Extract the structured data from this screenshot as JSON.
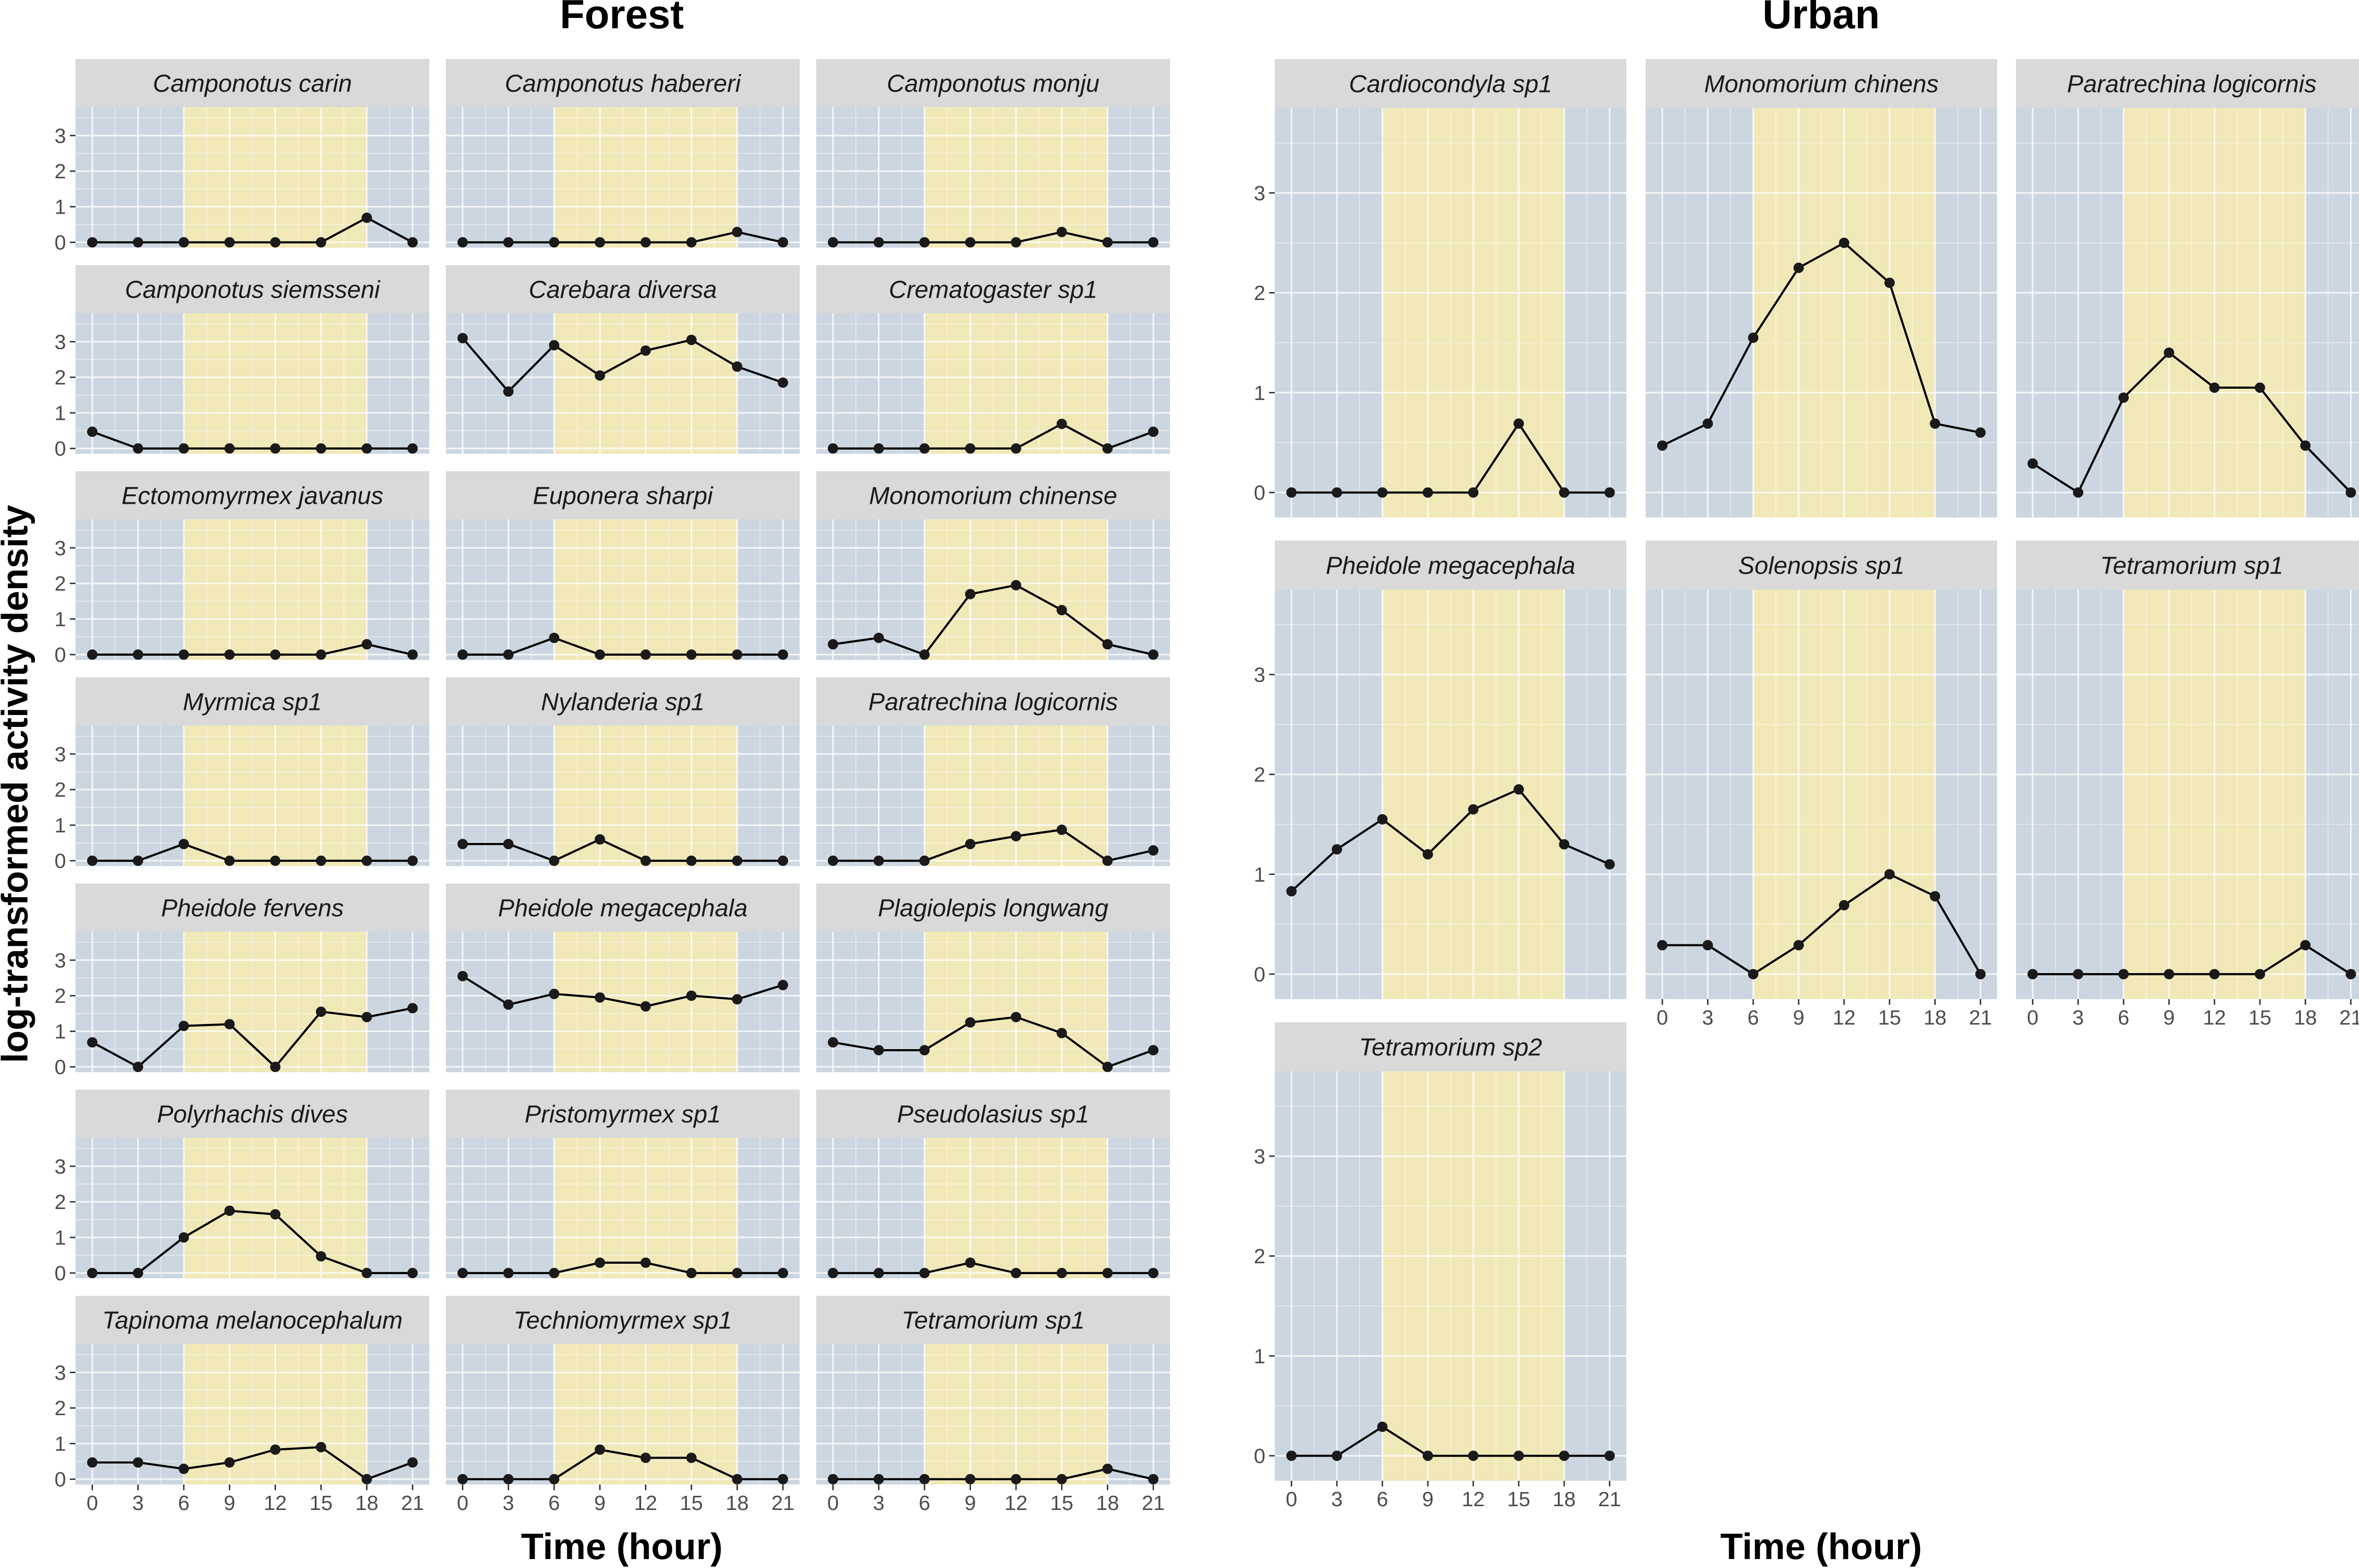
{
  "figure": {
    "ylabel": "log-transformed activity density",
    "xlabel": "Time (hour)"
  },
  "colors": {
    "night_band": "#ccd6e0",
    "day_band": "#f1e8b8",
    "strip": "#d9d9d9",
    "line": "#000000",
    "point": "#1a1a1a"
  },
  "chart_data": [
    {
      "type": "line",
      "group": "Forest",
      "title": "Forest",
      "xlabel": "Time (hour)",
      "ylabel": "log-transformed activity density",
      "x": [
        0,
        3,
        6,
        9,
        12,
        15,
        18,
        21
      ],
      "x_ticks": [
        "0",
        "3",
        "6",
        "9",
        "12",
        "15",
        "18",
        "21"
      ],
      "y_ticks": [
        "0",
        "1",
        "2",
        "3"
      ],
      "ylim": [
        -0.15,
        3.8
      ],
      "day_period": [
        6,
        18
      ],
      "grid": true,
      "series": [
        {
          "name": "Camponotus carin",
          "values": [
            0,
            0,
            0,
            0,
            0,
            0,
            0.69,
            0
          ]
        },
        {
          "name": "Camponotus habereri",
          "values": [
            0,
            0,
            0,
            0,
            0,
            0,
            0.29,
            0
          ]
        },
        {
          "name": "Camponotus monju",
          "values": [
            0,
            0,
            0,
            0,
            0,
            0.29,
            0,
            0
          ]
        },
        {
          "name": "Camponotus siemsseni",
          "values": [
            0.47,
            0,
            0,
            0,
            0,
            0,
            0,
            0
          ]
        },
        {
          "name": "Carebara diversa",
          "values": [
            3.1,
            1.6,
            2.9,
            2.05,
            2.75,
            3.05,
            2.3,
            1.85
          ]
        },
        {
          "name": "Crematogaster sp1",
          "values": [
            0,
            0,
            0,
            0,
            0,
            0.69,
            0,
            0.47
          ]
        },
        {
          "name": "Ectomomyrmex javanus",
          "values": [
            0,
            0,
            0,
            0,
            0,
            0,
            0.29,
            0
          ]
        },
        {
          "name": "Euponera sharpi",
          "values": [
            0,
            0,
            0.47,
            0,
            0,
            0,
            0,
            0
          ]
        },
        {
          "name": "Monomorium chinense",
          "values": [
            0.29,
            0.47,
            0,
            1.7,
            1.95,
            1.25,
            0.29,
            0
          ]
        },
        {
          "name": "Myrmica sp1",
          "values": [
            0,
            0,
            0.47,
            0,
            0,
            0,
            0,
            0
          ]
        },
        {
          "name": "Nylanderia sp1",
          "values": [
            0.47,
            0.47,
            0,
            0.6,
            0,
            0,
            0,
            0
          ]
        },
        {
          "name": "Paratrechina logicornis",
          "values": [
            0,
            0,
            0,
            0.47,
            0.69,
            0.87,
            0,
            0.29
          ]
        },
        {
          "name": "Pheidole fervens",
          "values": [
            0.69,
            0,
            1.15,
            1.2,
            0,
            1.55,
            1.4,
            1.65
          ]
        },
        {
          "name": "Pheidole megacephala",
          "values": [
            2.55,
            1.75,
            2.05,
            1.95,
            1.7,
            2.0,
            1.9,
            2.3
          ]
        },
        {
          "name": "Plagiolepis longwang",
          "values": [
            0.69,
            0.47,
            0.47,
            1.25,
            1.4,
            0.95,
            0,
            0.47
          ]
        },
        {
          "name": "Polyrhachis dives",
          "values": [
            0,
            0,
            1.0,
            1.75,
            1.65,
            0.47,
            0,
            0
          ]
        },
        {
          "name": "Pristomyrmex sp1",
          "values": [
            0,
            0,
            0,
            0.29,
            0.29,
            0,
            0,
            0
          ]
        },
        {
          "name": "Pseudolasius sp1",
          "values": [
            0,
            0,
            0,
            0.29,
            0,
            0,
            0,
            0
          ]
        },
        {
          "name": "Tapinoma melanocephalum",
          "values": [
            0.47,
            0.47,
            0.29,
            0.47,
            0.83,
            0.9,
            0,
            0.47
          ]
        },
        {
          "name": "Techniomyrmex sp1",
          "values": [
            0,
            0,
            0,
            0.83,
            0.6,
            0.6,
            0,
            0
          ]
        },
        {
          "name": "Tetramorium sp1",
          "values": [
            0,
            0,
            0,
            0,
            0,
            0,
            0.29,
            0
          ]
        }
      ]
    },
    {
      "type": "line",
      "group": "Urban",
      "title": "Urban",
      "xlabel": "Time (hour)",
      "x": [
        0,
        3,
        6,
        9,
        12,
        15,
        18,
        21
      ],
      "x_ticks": [
        "0",
        "3",
        "6",
        "9",
        "12",
        "15",
        "18",
        "21"
      ],
      "y_ticks": [
        "0",
        "1",
        "2",
        "3"
      ],
      "ylim": [
        -0.25,
        3.85
      ],
      "day_period": [
        6,
        18
      ],
      "grid": true,
      "series": [
        {
          "name": "Cardiocondyla sp1",
          "values": [
            0,
            0,
            0,
            0,
            0,
            0.69,
            0,
            0
          ]
        },
        {
          "name": "Monomorium chinens",
          "values": [
            0.47,
            0.69,
            1.55,
            2.25,
            2.5,
            2.1,
            0.69,
            0.6
          ]
        },
        {
          "name": "Paratrechina logicornis",
          "values": [
            0.29,
            0,
            0.95,
            1.4,
            1.05,
            1.05,
            0.47,
            0
          ]
        },
        {
          "name": "Pheidole megacephala",
          "values": [
            0.83,
            1.25,
            1.55,
            1.2,
            1.65,
            1.85,
            1.3,
            1.1
          ]
        },
        {
          "name": "Solenopsis sp1",
          "values": [
            0.29,
            0.29,
            0,
            0.29,
            0.69,
            1.0,
            0.78,
            0
          ]
        },
        {
          "name": "Tetramorium sp1",
          "values": [
            0,
            0,
            0,
            0,
            0,
            0,
            0.29,
            0
          ]
        },
        {
          "name": "Tetramorium sp2",
          "values": [
            0,
            0,
            0.29,
            0,
            0,
            0,
            0,
            0
          ]
        }
      ]
    }
  ]
}
